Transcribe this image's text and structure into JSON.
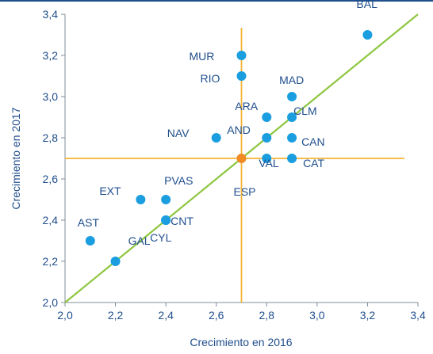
{
  "chart_data": {
    "type": "scatter",
    "xlabel": "Crecimiento en 2016",
    "ylabel": "Crecimiento en 2017",
    "xlim": [
      2.0,
      3.4
    ],
    "ylim": [
      2.0,
      3.4
    ],
    "x_ticks": [
      "2,0",
      "2,2",
      "2,4",
      "2,6",
      "2,8",
      "3,0",
      "3,2",
      "3,4"
    ],
    "y_ticks": [
      "2,0",
      "2,2",
      "2,4",
      "2,6",
      "2,8",
      "3,0",
      "3,2",
      "3,4"
    ],
    "grid": false,
    "reference_lines": {
      "x": 2.7,
      "y": 2.7,
      "color": "#f5b335"
    },
    "diagonal": {
      "from": [
        2.0,
        2.0
      ],
      "to": [
        3.4,
        3.4
      ],
      "color": "#8dc63f"
    },
    "point_color": "#1a9ee0",
    "highlight_color": "#f08a24",
    "points": [
      {
        "label": "BAL",
        "x": 3.2,
        "y": 3.3
      },
      {
        "label": "MUR",
        "x": 2.7,
        "y": 3.2
      },
      {
        "label": "RIO",
        "x": 2.7,
        "y": 3.1
      },
      {
        "label": "MAD",
        "x": 2.9,
        "y": 3.0
      },
      {
        "label": "ARA",
        "x": 2.8,
        "y": 2.9
      },
      {
        "label": "CLM",
        "x": 2.9,
        "y": 2.9
      },
      {
        "label": "NAV",
        "x": 2.6,
        "y": 2.8
      },
      {
        "label": "AND",
        "x": 2.8,
        "y": 2.8
      },
      {
        "label": "CAN",
        "x": 2.9,
        "y": 2.8
      },
      {
        "label": "ESP",
        "x": 2.7,
        "y": 2.7,
        "highlight": true
      },
      {
        "label": "VAL",
        "x": 2.8,
        "y": 2.7
      },
      {
        "label": "CAT",
        "x": 2.9,
        "y": 2.7
      },
      {
        "label": "EXT",
        "x": 2.3,
        "y": 2.5
      },
      {
        "label": "PVAS",
        "x": 2.4,
        "y": 2.5
      },
      {
        "label": "CNT",
        "x": 2.4,
        "y": 2.4
      },
      {
        "label": "AST",
        "x": 2.1,
        "y": 2.3
      },
      {
        "label": "CYL",
        "x": 2.4,
        "y": 2.4
      },
      {
        "label": "GAL",
        "x": 2.2,
        "y": 2.2
      }
    ]
  }
}
